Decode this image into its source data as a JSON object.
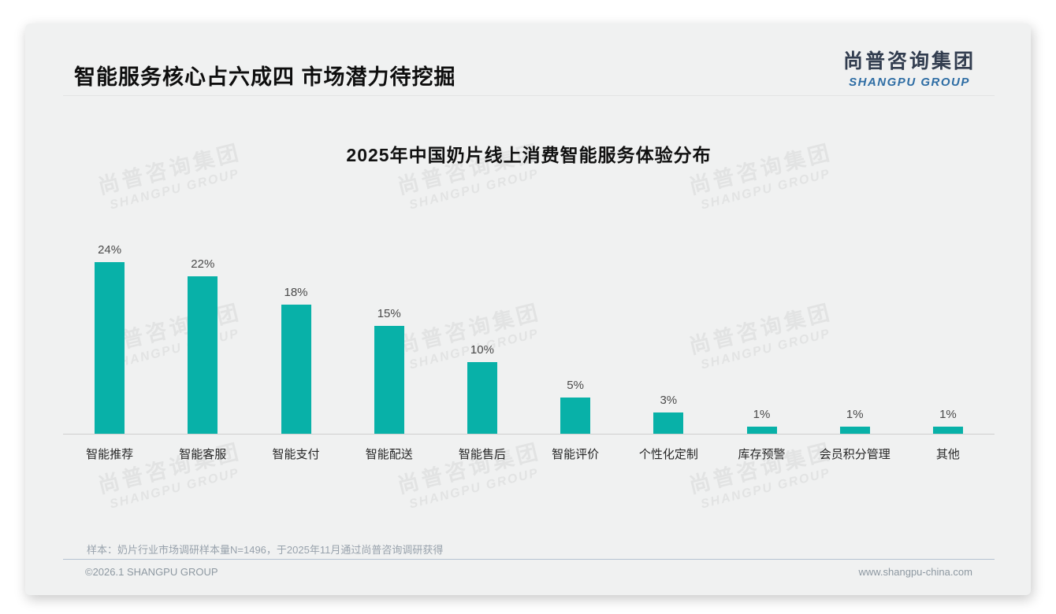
{
  "header": {
    "title": "智能服务核心占六成四 市场潜力待挖掘"
  },
  "logo": {
    "cn": "尚普咨询集团",
    "en": "SHANGPU GROUP"
  },
  "watermark": {
    "cn": "尚普咨询集团",
    "en": "SHANGPU GROUP"
  },
  "note": "样本：奶片行业市场调研样本量N=1496，于2025年11月通过尚普咨询调研获得",
  "footer": {
    "copyright": "©2026.1 SHANGPU GROUP",
    "website": "www.shangpu-china.com"
  },
  "colors": {
    "bar": "#08b1a8",
    "logo_cn": "#323d4f",
    "logo_en": "#2e6da4"
  },
  "chart_data": {
    "type": "bar",
    "title": "2025年中国奶片线上消费智能服务体验分布",
    "categories": [
      "智能推荐",
      "智能客服",
      "智能支付",
      "智能配送",
      "智能售后",
      "智能评价",
      "个性化定制",
      "库存预警",
      "会员积分管理",
      "其他"
    ],
    "values": [
      24,
      22,
      18,
      15,
      10,
      5,
      3,
      1,
      1,
      1
    ],
    "value_labels": [
      "24%",
      "22%",
      "18%",
      "15%",
      "10%",
      "5%",
      "3%",
      "1%",
      "1%",
      "1%"
    ],
    "xlabel": "",
    "ylabel": "",
    "ylim": [
      0,
      26
    ],
    "grid": false,
    "legend": "none",
    "bar_color": "#08b1a8"
  }
}
